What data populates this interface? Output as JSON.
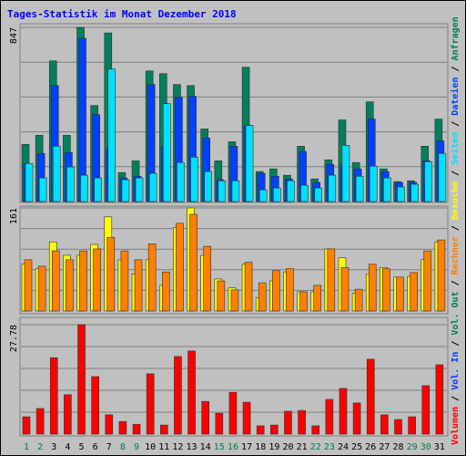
{
  "title": "Tages-Statistik im Monat Dezember 2018",
  "legend_separator": " / ",
  "chart_data": [
    {
      "type": "bar",
      "ylim": [
        0,
        847
      ],
      "yticks": [
        847
      ],
      "series": [
        {
          "name": "Anfragen",
          "color": "#00805c",
          "values": [
            278,
            322,
            684,
            322,
            847,
            467,
            820,
            141,
            198,
            635,
            622,
            569,
            564,
            353,
            198,
            291,
            653,
            146,
            159,
            128,
            269,
            110,
            203,
            397,
            190,
            485,
            159,
            97,
            101,
            269,
            401
          ]
        },
        {
          "name": "Dateien",
          "color": "#0040ff",
          "values": [
            185,
            234,
            564,
            238,
            794,
            423,
            260,
            115,
            123,
            569,
            269,
            507,
            512,
            309,
            106,
            269,
            370,
            137,
            123,
            110,
            243,
            93,
            181,
            181,
            159,
            401,
            146,
            93,
            93,
            198,
            295
          ]
        },
        {
          "name": "Seiten",
          "color": "#00e0ff",
          "values": [
            185,
            115,
            269,
            168,
            128,
            115,
            644,
            106,
            115,
            137,
            476,
            190,
            216,
            146,
            101,
            101,
            370,
            57,
            66,
            101,
            79,
            66,
            128,
            273,
            123,
            172,
            115,
            71,
            84,
            194,
            234
          ]
        }
      ]
    },
    {
      "type": "bar",
      "ylim": [
        0,
        161
      ],
      "yticks": [
        161
      ],
      "series": [
        {
          "name": "Besuche",
          "color": "#ffff00",
          "values": [
            73,
            66,
            108,
            87,
            87,
            104,
            147,
            80,
            58,
            80,
            40,
            130,
            161,
            87,
            50,
            36,
            73,
            21,
            47,
            61,
            30,
            30,
            97,
            83,
            28,
            58,
            68,
            53,
            54,
            80,
            108
          ]
        },
        {
          "name": "Rechner",
          "color": "#ff8000",
          "values": [
            80,
            70,
            94,
            80,
            94,
            97,
            115,
            94,
            80,
            105,
            61,
            137,
            151,
            101,
            47,
            33,
            76,
            44,
            63,
            66,
            30,
            40,
            97,
            68,
            34,
            73,
            66,
            53,
            60,
            94,
            111
          ]
        }
      ]
    },
    {
      "type": "bar",
      "ylim": [
        0,
        27.78
      ],
      "yticks": [
        27.78
      ],
      "categories": [
        "1",
        "2",
        "3",
        "4",
        "5",
        "6",
        "7",
        "8",
        "9",
        "10",
        "11",
        "12",
        "13",
        "14",
        "15",
        "16",
        "17",
        "18",
        "19",
        "20",
        "21",
        "22",
        "23",
        "24",
        "25",
        "26",
        "27",
        "28",
        "29",
        "30",
        "31"
      ],
      "category_colors": [
        "#008040",
        "#008040",
        "#000000",
        "#000000",
        "#000000",
        "#000000",
        "#000000",
        "#008040",
        "#008040",
        "#000000",
        "#000000",
        "#000000",
        "#000000",
        "#000000",
        "#008040",
        "#008040",
        "#000000",
        "#000000",
        "#000000",
        "#000000",
        "#000000",
        "#008040",
        "#008040",
        "#000000",
        "#000000",
        "#000000",
        "#000000",
        "#000000",
        "#008040",
        "#008040",
        "#000000"
      ],
      "series": [
        {
          "name": "Vol. Out",
          "color": "#00805c",
          "values": [
            null,
            null,
            null,
            null,
            null,
            null,
            null,
            null,
            null,
            null,
            null,
            null,
            null,
            null,
            null,
            null,
            null,
            null,
            null,
            null,
            null,
            null,
            null,
            null,
            null,
            null,
            null,
            null,
            null,
            null,
            null
          ]
        },
        {
          "name": "Vol. In",
          "color": "#0040ff",
          "values": [
            null,
            null,
            null,
            null,
            null,
            null,
            null,
            null,
            null,
            null,
            null,
            null,
            null,
            null,
            null,
            null,
            null,
            null,
            null,
            null,
            null,
            null,
            null,
            null,
            null,
            null,
            null,
            null,
            null,
            null,
            null
          ]
        },
        {
          "name": "Volumen",
          "color": "#ff0000",
          "values": [
            4.4,
            6.5,
            19.4,
            10.0,
            27.78,
            14.6,
            4.9,
            3.2,
            2.5,
            15.3,
            2.3,
            19.7,
            21.1,
            8.3,
            5.3,
            10.6,
            8.1,
            2.1,
            2.3,
            5.8,
            6.0,
            2.1,
            8.8,
            11.6,
            7.9,
            19.0,
            4.9,
            3.7,
            4.4,
            12.3,
            17.6
          ]
        }
      ]
    }
  ]
}
